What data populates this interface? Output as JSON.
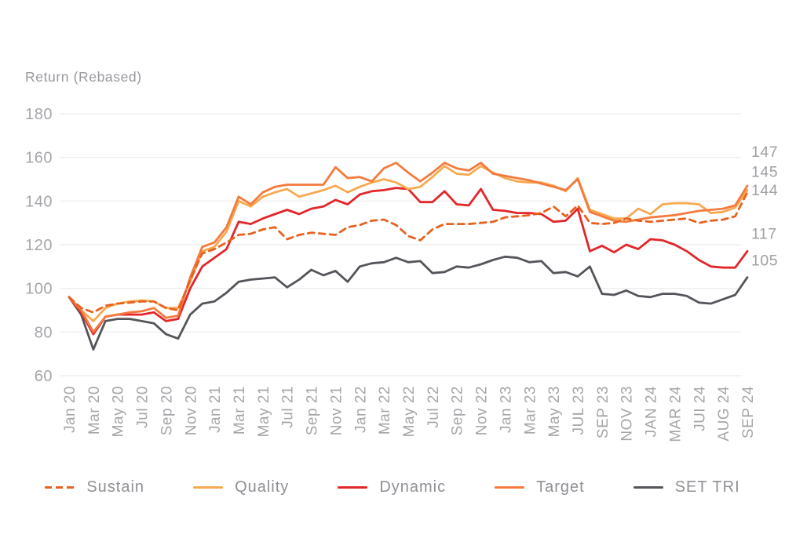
{
  "title": "Return (Rebased)",
  "colors": {
    "grid": "#eaeaec",
    "tick_text": "#a5a6aa",
    "title_text": "#97989d",
    "legend_text": "#8f9095",
    "end_label_text": "#a0a1a5",
    "sustain": "#E8611F",
    "quality": "#F7A94F",
    "dynamic": "#E2262A",
    "target": "#F47A3D",
    "set_tri": "#54555A"
  },
  "legend": {
    "items": [
      {
        "label": "Sustain"
      },
      {
        "label": "Quality"
      },
      {
        "label": "Dynamic"
      },
      {
        "label": "Target"
      },
      {
        "label": "SET TRI"
      }
    ]
  },
  "chart_data": {
    "type": "line",
    "title": "Return (Rebased)",
    "ylabel": "Return (Rebased)",
    "xlabel": "",
    "ylim": [
      60,
      180
    ],
    "yticks": [
      60,
      80,
      100,
      120,
      140,
      160,
      180
    ],
    "grid": "horizontal",
    "legend_position": "bottom",
    "x_frequency": "monthly Jan 2020 - Sep 2024, tick labels every 2 months",
    "x_tick_labels": [
      "Jan 20",
      "Mar 20",
      "May 20",
      "Jul 20",
      "Sep 20",
      "Nov 20",
      "Jan 21",
      "Mar 21",
      "May 21",
      "Jul 21",
      "Sep 21",
      "Nov 21",
      "Jan 22",
      "Mar 22",
      "May 22",
      "Jul 22",
      "Sep 22",
      "Nov 22",
      "Jan 23",
      "Mar 23",
      "May 23",
      "JUL 23",
      "SEP 23",
      "NOV 23",
      "JAN 24",
      "MAR 24",
      "JUI 24",
      "AUG 24",
      "SEP 24"
    ],
    "end_labels": [
      {
        "series": "Target",
        "text": "147"
      },
      {
        "series": "Quality",
        "text": "145"
      },
      {
        "series": "Sustain",
        "text": "144"
      },
      {
        "series": "Dynamic",
        "text": "117"
      },
      {
        "series": "SET TRI",
        "text": "105"
      }
    ],
    "series": [
      {
        "name": "Sustain",
        "style": "dashed",
        "color": "#E8611F",
        "end_value": 144,
        "values": [
          96,
          91,
          89,
          92,
          93,
          93.5,
          94,
          94,
          91,
          90,
          104,
          116,
          118,
          121,
          124.5,
          125,
          127,
          128,
          122.5,
          124.5,
          125.5,
          125,
          124.5,
          128,
          129,
          131,
          131.5,
          129,
          124,
          122,
          127,
          129.5,
          129.5,
          129.5,
          130,
          130.5,
          132.5,
          133,
          133.5,
          134.5,
          137.5,
          133,
          138,
          130,
          129.5,
          130,
          132,
          131,
          130.5,
          131,
          131.5,
          132,
          130,
          131,
          131.5,
          133,
          144
        ]
      },
      {
        "name": "Quality",
        "style": "solid",
        "color": "#F7A94F",
        "end_value": 145,
        "values": [
          96,
          90,
          85,
          91,
          93,
          94,
          94.5,
          94,
          91,
          91,
          103,
          117,
          119,
          126,
          140,
          137.5,
          142,
          144,
          145.5,
          142,
          143.5,
          145,
          147,
          144,
          146.5,
          148.5,
          150,
          148.5,
          145.5,
          146.5,
          151,
          156,
          152.5,
          152,
          156,
          153,
          150.5,
          149,
          148.5,
          148.5,
          147,
          144.5,
          150.5,
          136,
          134,
          132,
          132,
          136.5,
          134,
          138.5,
          139,
          139,
          138.5,
          134.5,
          135,
          137,
          145
        ]
      },
      {
        "name": "Dynamic",
        "style": "solid",
        "color": "#E2262A",
        "end_value": 117,
        "values": [
          96,
          89,
          79,
          87,
          88,
          88,
          88,
          89,
          85,
          86,
          100,
          110,
          114,
          118,
          130.5,
          129.5,
          132,
          134,
          136,
          134,
          136.5,
          137.5,
          140.5,
          138.5,
          143,
          144.5,
          145,
          146,
          145.5,
          139.5,
          139.5,
          144.5,
          138.5,
          138,
          145.5,
          136,
          135.5,
          134.5,
          134.5,
          134,
          130.5,
          131,
          136.5,
          117,
          119.5,
          116.5,
          120,
          118,
          122.5,
          122,
          120,
          117,
          113,
          110,
          109.5,
          109.5,
          117
        ]
      },
      {
        "name": "Target",
        "style": "solid",
        "color": "#F47A3D",
        "end_value": 147,
        "values": [
          96,
          90,
          80,
          87,
          88,
          89,
          89.5,
          91,
          86.5,
          87.5,
          105,
          119,
          121,
          128,
          142,
          138.5,
          144,
          146.5,
          147.5,
          147.5,
          147.5,
          147.5,
          155.5,
          150.5,
          151,
          149,
          155,
          157.5,
          153,
          149,
          153,
          157.5,
          155,
          154,
          157.5,
          152.5,
          151.5,
          150.5,
          149.5,
          148,
          146.5,
          145,
          150,
          135,
          133,
          131,
          130.5,
          131.5,
          132.5,
          133,
          133.5,
          134.5,
          135.5,
          136,
          136.5,
          138,
          147
        ]
      },
      {
        "name": "SET TRI",
        "style": "solid",
        "color": "#54555A",
        "end_value": 105,
        "values": [
          96,
          88,
          72,
          85,
          86,
          86,
          85,
          84,
          79,
          77,
          88,
          93,
          94,
          98,
          103,
          104,
          104.5,
          105,
          100.5,
          104,
          108.5,
          106,
          108,
          103,
          110,
          111.5,
          112,
          114,
          112,
          112.5,
          107,
          107.5,
          110,
          109.5,
          111,
          113,
          114.5,
          114,
          112,
          112.5,
          107,
          107.5,
          105.5,
          110,
          97.5,
          97,
          99,
          96.5,
          96,
          97.5,
          97.5,
          96.5,
          93.5,
          93,
          95,
          97,
          105
        ]
      }
    ]
  }
}
